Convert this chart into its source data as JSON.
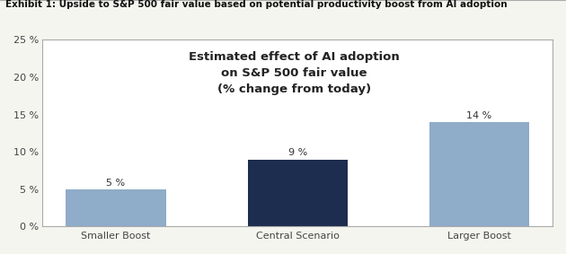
{
  "title": "Exhibit 1: Upside to S&P 500 fair value based on potential productivity boost from AI adoption",
  "categories": [
    "Smaller Boost",
    "Central Scenario",
    "Larger Boost"
  ],
  "values": [
    5,
    9,
    14
  ],
  "bar_colors": [
    "#8facc8",
    "#1c2d4f",
    "#8facc8"
  ],
  "bar_labels": [
    "5 %",
    "9 %",
    "14 %"
  ],
  "annotation_text": "Estimated effect of AI adoption\non S&P 500 fair value\n(% change from today)",
  "ylim": [
    0,
    25
  ],
  "yticks": [
    0,
    5,
    10,
    15,
    20,
    25
  ],
  "ytick_labels": [
    "0 %",
    "5 %",
    "10 %",
    "15 %",
    "20 %",
    "25 %"
  ],
  "background_color": "#f5f5f0",
  "plot_bg_color": "#ffffff",
  "title_fontsize": 7.5,
  "label_fontsize": 8,
  "bar_label_fontsize": 8,
  "annotation_fontsize": 9.5,
  "bar_width": 0.55
}
